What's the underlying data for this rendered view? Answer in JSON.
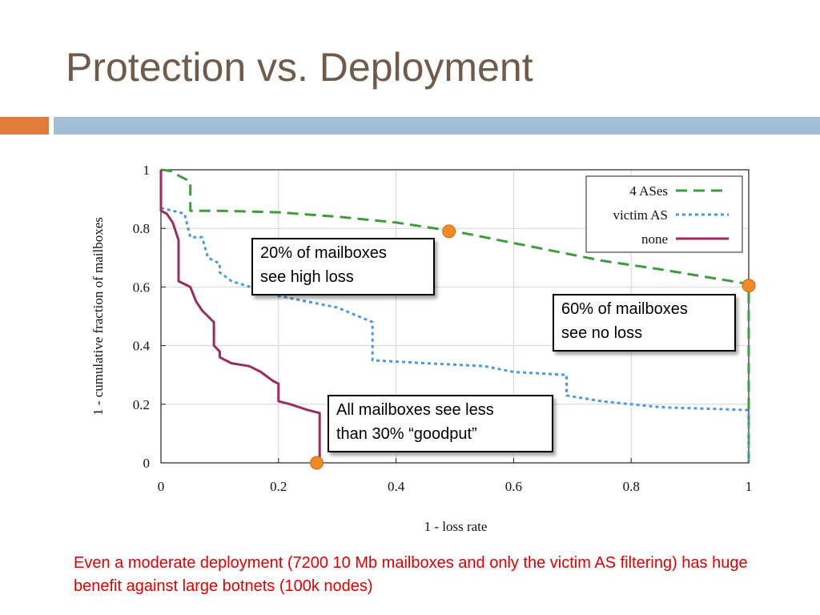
{
  "slide": {
    "title": "Protection vs. Deployment",
    "caption": "Even a moderate deployment (7200 10 Mb mailboxes and only the victim AS filtering) has huge benefit against large botnets (100k nodes)",
    "accent_color": "#e07b39",
    "bar_color": "#a3bfd7",
    "title_color": "#6f5b4b",
    "caption_color": "#e00000"
  },
  "callouts": {
    "high_loss": {
      "line1": "20% of mailboxes",
      "line2": "see high loss"
    },
    "no_loss": {
      "line1": "60% of mailboxes",
      "line2": "see no loss"
    },
    "goodput": {
      "line1": "All mailboxes see less",
      "line2": "than 30% “goodput”"
    }
  },
  "chart_data": {
    "type": "line",
    "title": "",
    "xlabel": "1 - loss rate",
    "ylabel": "1 - cumulative fraction of mailboxes",
    "xlim": [
      0,
      1
    ],
    "ylim": [
      0,
      1
    ],
    "x_ticks": [
      0,
      0.2,
      0.4,
      0.6,
      0.8,
      1
    ],
    "x_tick_labels": [
      "0",
      "0.2",
      "0.4",
      "0.6",
      "0.8",
      "1"
    ],
    "y_ticks": [
      0,
      0.2,
      0.4,
      0.6,
      0.8,
      1
    ],
    "y_tick_labels": [
      "0",
      "0.2",
      "0.4",
      "0.6",
      "0.8",
      "1"
    ],
    "grid": true,
    "legend_position": "top-right",
    "series": [
      {
        "name": "4 ASes",
        "color": "#3f9b3f",
        "style": "dashed",
        "points": [
          [
            0,
            1
          ],
          [
            0.02,
            0.995
          ],
          [
            0.03,
            0.98
          ],
          [
            0.05,
            0.96
          ],
          [
            0.05,
            0.86
          ],
          [
            0.1,
            0.86
          ],
          [
            0.2,
            0.855
          ],
          [
            0.3,
            0.84
          ],
          [
            0.4,
            0.82
          ],
          [
            0.5,
            0.79
          ],
          [
            0.6,
            0.75
          ],
          [
            0.7,
            0.71
          ],
          [
            0.75,
            0.69
          ],
          [
            0.85,
            0.66
          ],
          [
            1,
            0.61
          ],
          [
            1,
            0.0
          ]
        ]
      },
      {
        "name": "victim AS",
        "color": "#4a9bd8",
        "style": "dotted",
        "points": [
          [
            0,
            0.87
          ],
          [
            0.02,
            0.86
          ],
          [
            0.04,
            0.85
          ],
          [
            0.05,
            0.77
          ],
          [
            0.07,
            0.77
          ],
          [
            0.08,
            0.7
          ],
          [
            0.1,
            0.68
          ],
          [
            0.1,
            0.65
          ],
          [
            0.12,
            0.62
          ],
          [
            0.2,
            0.57
          ],
          [
            0.25,
            0.55
          ],
          [
            0.3,
            0.53
          ],
          [
            0.36,
            0.48
          ],
          [
            0.36,
            0.35
          ],
          [
            0.45,
            0.34
          ],
          [
            0.55,
            0.33
          ],
          [
            0.6,
            0.31
          ],
          [
            0.69,
            0.3
          ],
          [
            0.69,
            0.23
          ],
          [
            0.75,
            0.21
          ],
          [
            0.85,
            0.19
          ],
          [
            1,
            0.18
          ],
          [
            1,
            0.0
          ]
        ]
      },
      {
        "name": "none",
        "color": "#9b2d5d",
        "style": "solid",
        "points": [
          [
            0,
            1
          ],
          [
            0,
            0.86
          ],
          [
            0.01,
            0.85
          ],
          [
            0.02,
            0.82
          ],
          [
            0.03,
            0.76
          ],
          [
            0.03,
            0.62
          ],
          [
            0.05,
            0.6
          ],
          [
            0.06,
            0.55
          ],
          [
            0.07,
            0.52
          ],
          [
            0.08,
            0.5
          ],
          [
            0.09,
            0.48
          ],
          [
            0.09,
            0.4
          ],
          [
            0.1,
            0.38
          ],
          [
            0.1,
            0.36
          ],
          [
            0.12,
            0.34
          ],
          [
            0.15,
            0.33
          ],
          [
            0.17,
            0.31
          ],
          [
            0.19,
            0.28
          ],
          [
            0.2,
            0.27
          ],
          [
            0.2,
            0.21
          ],
          [
            0.22,
            0.2
          ],
          [
            0.25,
            0.18
          ],
          [
            0.27,
            0.17
          ],
          [
            0.27,
            0.0
          ]
        ]
      }
    ],
    "markers": [
      {
        "name": "marker-high-loss",
        "x": 0.49,
        "y": 0.79,
        "color": "#f08a24"
      },
      {
        "name": "marker-no-loss",
        "x": 1.0,
        "y": 0.605,
        "color": "#f08a24"
      },
      {
        "name": "marker-goodput",
        "x": 0.265,
        "y": 0.0,
        "color": "#f08a24"
      }
    ]
  }
}
